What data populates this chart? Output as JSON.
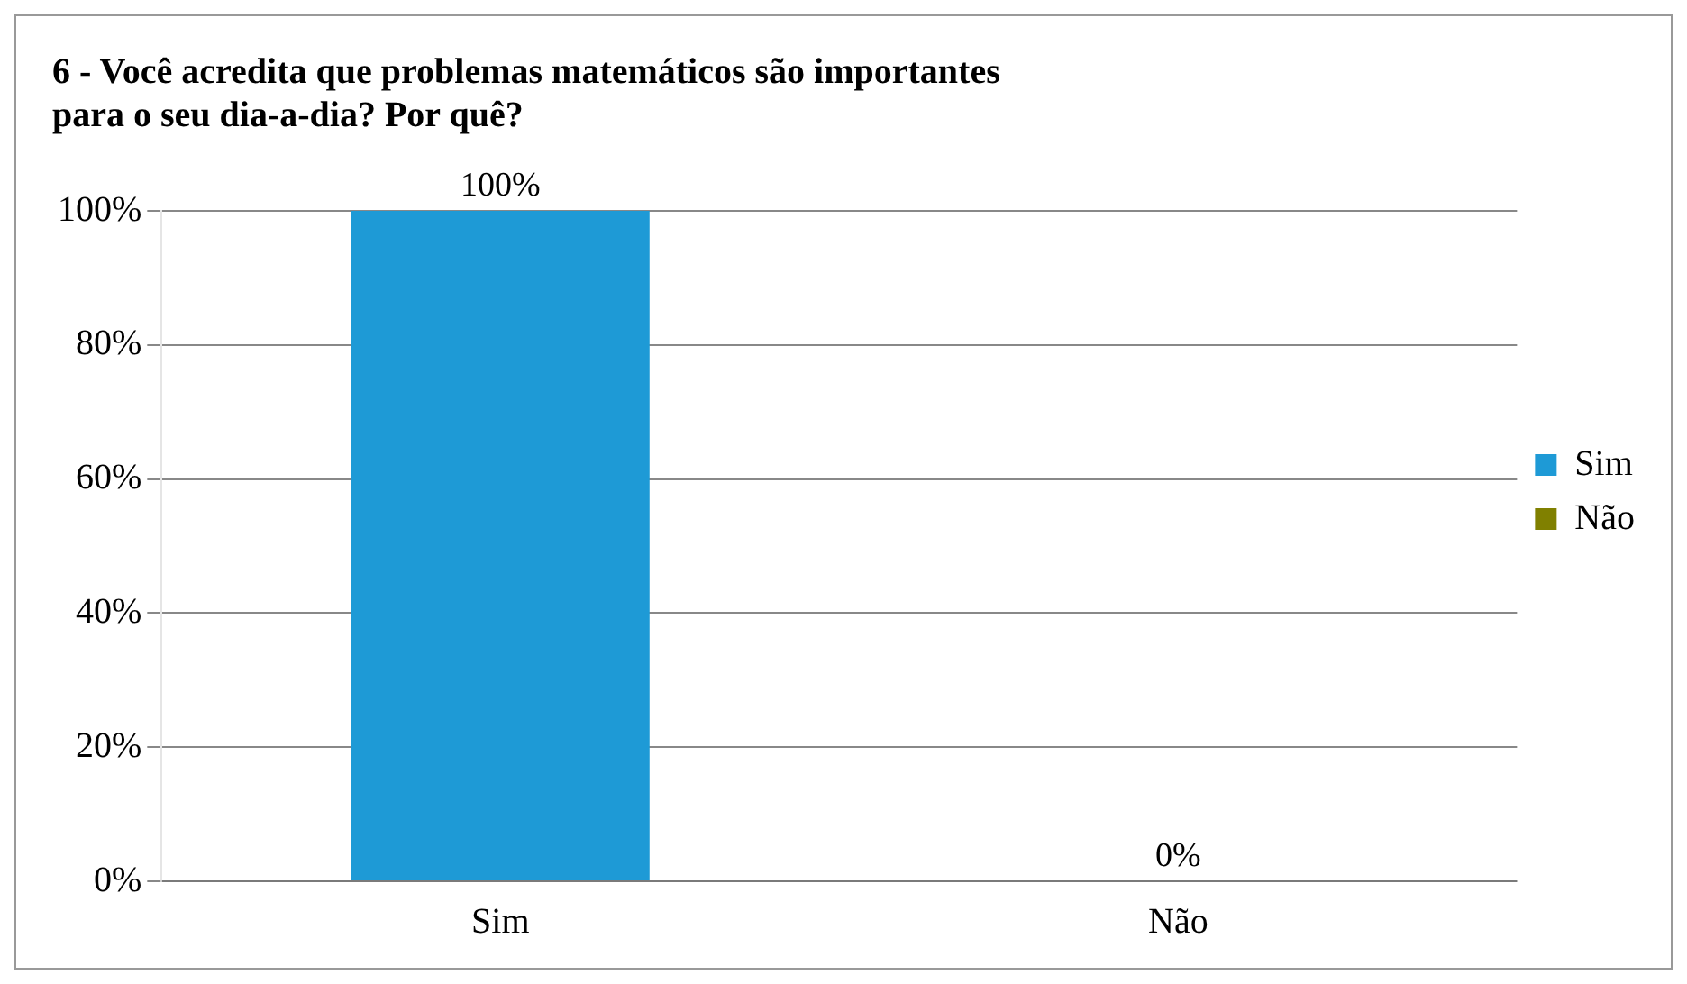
{
  "chart_data": {
    "type": "bar",
    "title": "6 - Você acredita que problemas matemáticos são importantes para o seu dia-a-dia? Por quê?",
    "categories": [
      "Sim",
      "Não"
    ],
    "series": [
      {
        "name": "Sim",
        "color": "#1e9ad6",
        "values": [
          100,
          null
        ],
        "value_labels": [
          "100%",
          null
        ]
      },
      {
        "name": "Não",
        "color": "#808000",
        "values": [
          null,
          0
        ],
        "value_labels": [
          null,
          "0%"
        ]
      }
    ],
    "ylim": [
      0,
      100
    ],
    "yticks": [
      {
        "value": 0,
        "label": "0%"
      },
      {
        "value": 20,
        "label": "20%"
      },
      {
        "value": 40,
        "label": "40%"
      },
      {
        "value": 60,
        "label": "60%"
      },
      {
        "value": 80,
        "label": "80%"
      },
      {
        "value": 100,
        "label": "100%"
      }
    ],
    "grid": "y",
    "legend": "right"
  }
}
